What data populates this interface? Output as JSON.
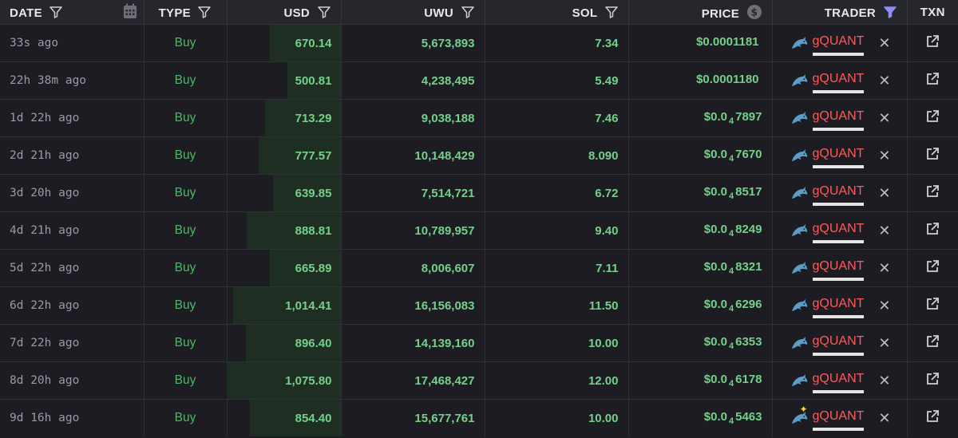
{
  "headers": {
    "date": "DATE",
    "type": "TYPE",
    "usd": "USD",
    "uwu": "UWU",
    "sol": "SOL",
    "price": "PRICE",
    "trader": "TRADER",
    "txn": "TXN"
  },
  "colors": {
    "buy": "#4fb76a",
    "value": "#74d08a",
    "trader": "#ff5a5a",
    "filter_active": "#8f8cf5"
  },
  "icons": {
    "filter": "filter-icon",
    "calendar": "calendar-icon",
    "dollar": "dollar-circle-icon",
    "dolphin": "dolphin-icon",
    "close": "close-icon",
    "external": "external-link-icon"
  },
  "rows": [
    {
      "date": "33s ago",
      "type": "Buy",
      "usd": "670.14",
      "usd_value": 670.14,
      "uwu": "5,673,893",
      "sol": "7.34",
      "price_pre": "$0.0001181",
      "price_sub": "",
      "price_post": "",
      "trader": "gQUANT",
      "sparkle": false
    },
    {
      "date": "22h 38m ago",
      "type": "Buy",
      "usd": "500.81",
      "usd_value": 500.81,
      "uwu": "4,238,495",
      "sol": "5.49",
      "price_pre": "$0.0001180",
      "price_sub": "",
      "price_post": "",
      "trader": "gQUANT",
      "sparkle": false
    },
    {
      "date": "1d 22h ago",
      "type": "Buy",
      "usd": "713.29",
      "usd_value": 713.29,
      "uwu": "9,038,188",
      "sol": "7.46",
      "price_pre": "$0.0",
      "price_sub": "4",
      "price_post": "7897",
      "trader": "gQUANT",
      "sparkle": false
    },
    {
      "date": "2d 21h ago",
      "type": "Buy",
      "usd": "777.57",
      "usd_value": 777.57,
      "uwu": "10,148,429",
      "sol": "8.090",
      "price_pre": "$0.0",
      "price_sub": "4",
      "price_post": "7670",
      "trader": "gQUANT",
      "sparkle": false
    },
    {
      "date": "3d 20h ago",
      "type": "Buy",
      "usd": "639.85",
      "usd_value": 639.85,
      "uwu": "7,514,721",
      "sol": "6.72",
      "price_pre": "$0.0",
      "price_sub": "4",
      "price_post": "8517",
      "trader": "gQUANT",
      "sparkle": false
    },
    {
      "date": "4d 21h ago",
      "type": "Buy",
      "usd": "888.81",
      "usd_value": 888.81,
      "uwu": "10,789,957",
      "sol": "9.40",
      "price_pre": "$0.0",
      "price_sub": "4",
      "price_post": "8249",
      "trader": "gQUANT",
      "sparkle": false
    },
    {
      "date": "5d 22h ago",
      "type": "Buy",
      "usd": "665.89",
      "usd_value": 665.89,
      "uwu": "8,006,607",
      "sol": "7.11",
      "price_pre": "$0.0",
      "price_sub": "4",
      "price_post": "8321",
      "trader": "gQUANT",
      "sparkle": false
    },
    {
      "date": "6d 22h ago",
      "type": "Buy",
      "usd": "1,014.41",
      "usd_value": 1014.41,
      "uwu": "16,156,083",
      "sol": "11.50",
      "price_pre": "$0.0",
      "price_sub": "4",
      "price_post": "6296",
      "trader": "gQUANT",
      "sparkle": false
    },
    {
      "date": "7d 22h ago",
      "type": "Buy",
      "usd": "896.40",
      "usd_value": 896.4,
      "uwu": "14,139,160",
      "sol": "10.00",
      "price_pre": "$0.0",
      "price_sub": "4",
      "price_post": "6353",
      "trader": "gQUANT",
      "sparkle": false
    },
    {
      "date": "8d 20h ago",
      "type": "Buy",
      "usd": "1,075.80",
      "usd_value": 1075.8,
      "uwu": "17,468,427",
      "sol": "12.00",
      "price_pre": "$0.0",
      "price_sub": "4",
      "price_post": "6178",
      "trader": "gQUANT",
      "sparkle": false
    },
    {
      "date": "9d 16h ago",
      "type": "Buy",
      "usd": "854.40",
      "usd_value": 854.4,
      "uwu": "15,677,761",
      "sol": "10.00",
      "price_pre": "$0.0",
      "price_sub": "4",
      "price_post": "5463",
      "trader": "gQUANT",
      "sparkle": true
    }
  ]
}
